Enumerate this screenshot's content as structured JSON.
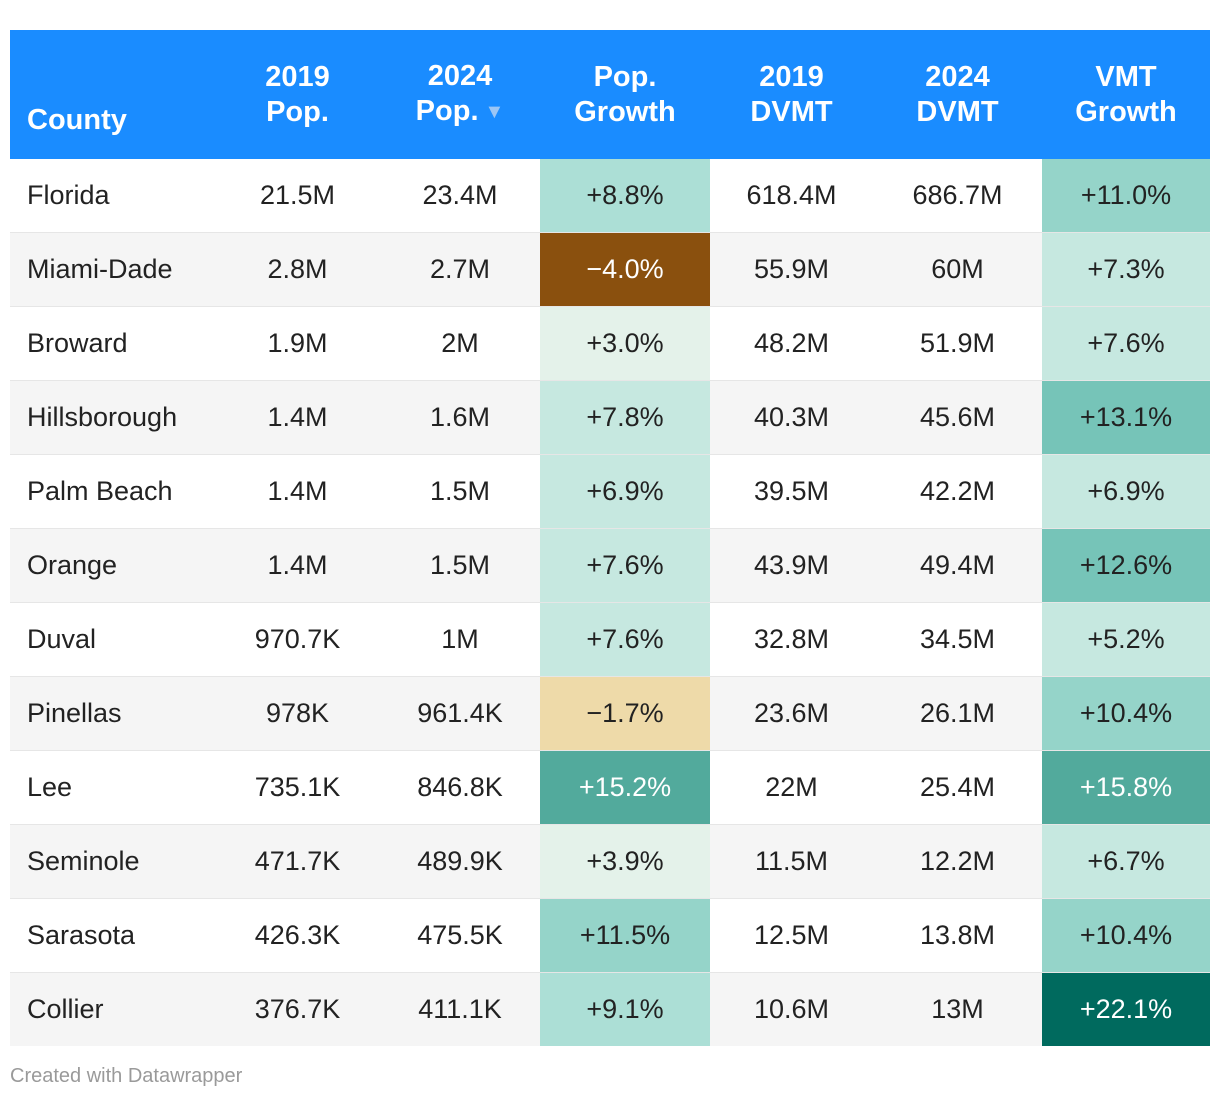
{
  "chart_data": {
    "type": "table",
    "columns": [
      {
        "key": "county",
        "lines": [
          "County"
        ]
      },
      {
        "key": "pop_2019",
        "lines": [
          "2019",
          "Pop."
        ]
      },
      {
        "key": "pop_2024",
        "lines": [
          "2024",
          "Pop."
        ],
        "sorted": true,
        "sort_icon": "▼"
      },
      {
        "key": "pop_growth",
        "lines": [
          "Pop.",
          "Growth"
        ]
      },
      {
        "key": "dvmt_2019",
        "lines": [
          "2019",
          "DVMT"
        ]
      },
      {
        "key": "dvmt_2024",
        "lines": [
          "2024",
          "DVMT"
        ]
      },
      {
        "key": "vmt_growth",
        "lines": [
          "VMT",
          "Growth"
        ]
      }
    ],
    "rows": [
      {
        "county": "Florida",
        "pop_2019": "21.5M",
        "pop_2024": "23.4M",
        "pop_growth": "+8.8%",
        "pop_growth_value": 8.8,
        "dvmt_2019": "618.4M",
        "dvmt_2024": "686.7M",
        "vmt_growth": "+11.0%",
        "vmt_growth_value": 11.0
      },
      {
        "county": "Miami-Dade",
        "pop_2019": "2.8M",
        "pop_2024": "2.7M",
        "pop_growth": "−4.0%",
        "pop_growth_value": -4.0,
        "dvmt_2019": "55.9M",
        "dvmt_2024": "60M",
        "vmt_growth": "+7.3%",
        "vmt_growth_value": 7.3
      },
      {
        "county": "Broward",
        "pop_2019": "1.9M",
        "pop_2024": "2M",
        "pop_growth": "+3.0%",
        "pop_growth_value": 3.0,
        "dvmt_2019": "48.2M",
        "dvmt_2024": "51.9M",
        "vmt_growth": "+7.6%",
        "vmt_growth_value": 7.6
      },
      {
        "county": "Hillsborough",
        "pop_2019": "1.4M",
        "pop_2024": "1.6M",
        "pop_growth": "+7.8%",
        "pop_growth_value": 7.8,
        "dvmt_2019": "40.3M",
        "dvmt_2024": "45.6M",
        "vmt_growth": "+13.1%",
        "vmt_growth_value": 13.1
      },
      {
        "county": "Palm Beach",
        "pop_2019": "1.4M",
        "pop_2024": "1.5M",
        "pop_growth": "+6.9%",
        "pop_growth_value": 6.9,
        "dvmt_2019": "39.5M",
        "dvmt_2024": "42.2M",
        "vmt_growth": "+6.9%",
        "vmt_growth_value": 6.9
      },
      {
        "county": "Orange",
        "pop_2019": "1.4M",
        "pop_2024": "1.5M",
        "pop_growth": "+7.6%",
        "pop_growth_value": 7.6,
        "dvmt_2019": "43.9M",
        "dvmt_2024": "49.4M",
        "vmt_growth": "+12.6%",
        "vmt_growth_value": 12.6
      },
      {
        "county": "Duval",
        "pop_2019": "970.7K",
        "pop_2024": "1M",
        "pop_growth": "+7.6%",
        "pop_growth_value": 7.6,
        "dvmt_2019": "32.8M",
        "dvmt_2024": "34.5M",
        "vmt_growth": "+5.2%",
        "vmt_growth_value": 5.2
      },
      {
        "county": "Pinellas",
        "pop_2019": "978K",
        "pop_2024": "961.4K",
        "pop_growth": "−1.7%",
        "pop_growth_value": -1.7,
        "dvmt_2019": "23.6M",
        "dvmt_2024": "26.1M",
        "vmt_growth": "+10.4%",
        "vmt_growth_value": 10.4
      },
      {
        "county": "Lee",
        "pop_2019": "735.1K",
        "pop_2024": "846.8K",
        "pop_growth": "+15.2%",
        "pop_growth_value": 15.2,
        "dvmt_2019": "22M",
        "dvmt_2024": "25.4M",
        "vmt_growth": "+15.8%",
        "vmt_growth_value": 15.8
      },
      {
        "county": "Seminole",
        "pop_2019": "471.7K",
        "pop_2024": "489.9K",
        "pop_growth": "+3.9%",
        "pop_growth_value": 3.9,
        "dvmt_2019": "11.5M",
        "dvmt_2024": "12.2M",
        "vmt_growth": "+6.7%",
        "vmt_growth_value": 6.7
      },
      {
        "county": "Sarasota",
        "pop_2019": "426.3K",
        "pop_2024": "475.5K",
        "pop_growth": "+11.5%",
        "pop_growth_value": 11.5,
        "dvmt_2019": "12.5M",
        "dvmt_2024": "13.8M",
        "vmt_growth": "+10.4%",
        "vmt_growth_value": 10.4
      },
      {
        "county": "Collier",
        "pop_2019": "376.7K",
        "pop_2024": "411.1K",
        "pop_growth": "+9.1%",
        "pop_growth_value": 9.1,
        "dvmt_2019": "10.6M",
        "dvmt_2024": "13M",
        "vmt_growth": "+22.1%",
        "vmt_growth_value": 22.1
      }
    ],
    "color_scale": {
      "negative_strong": "#8a500e",
      "negative_light": "#eedaa9",
      "positive_stops": [
        "#e4f2ea",
        "#c6e8e0",
        "#acdfd6",
        "#95d4c9",
        "#76c4b8",
        "#52aa9c",
        "#006a5e"
      ],
      "header_bg": "#1a8cff",
      "header_text": "#ffffff"
    }
  },
  "footer": {
    "credit": "Created with Datawrapper"
  }
}
